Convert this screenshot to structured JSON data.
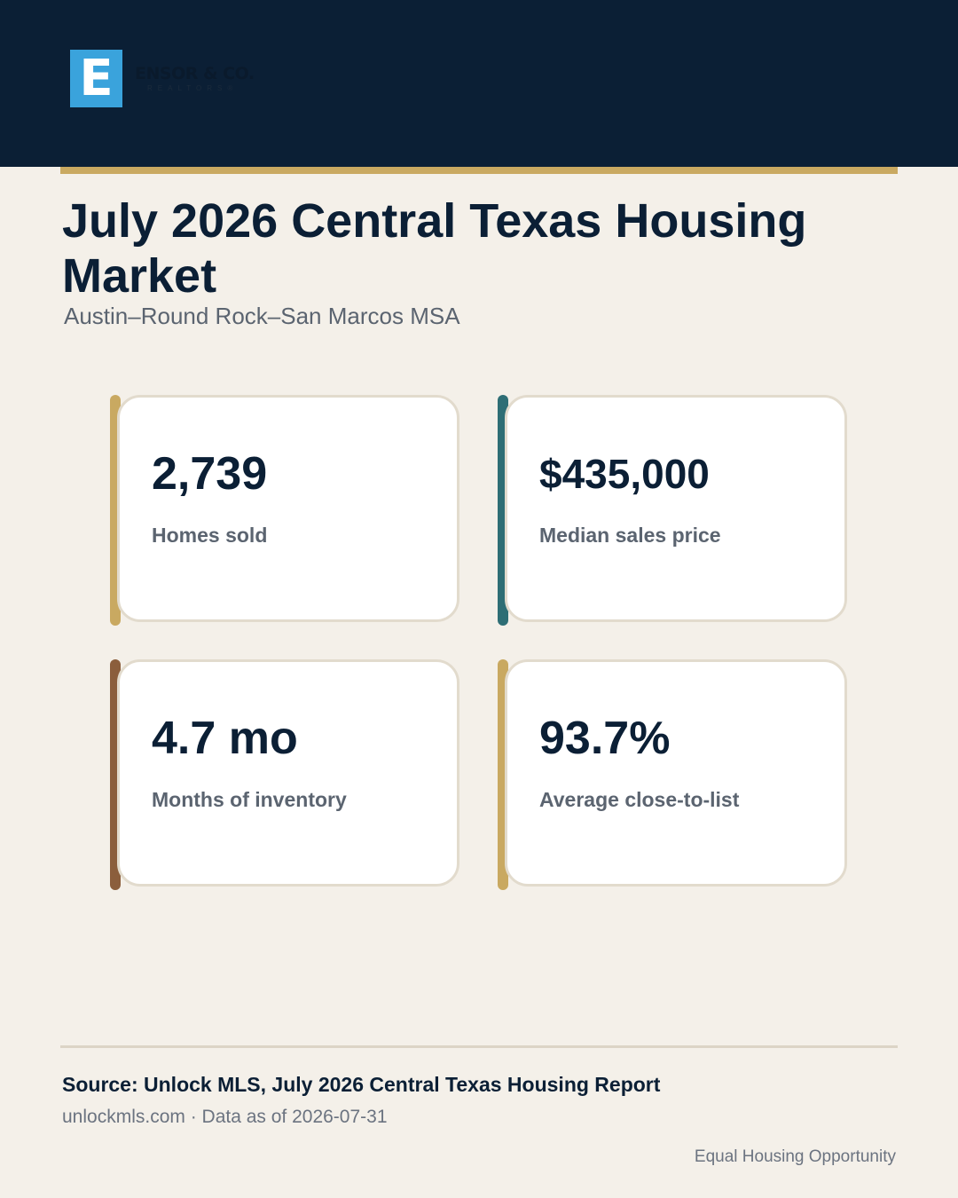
{
  "brand": {
    "mark_letter": "E",
    "name": "ENSOR & CO.",
    "tagline": "REALTORS®"
  },
  "title": "July 2026 Central Texas Housing Market",
  "subtitle": "Austin–Round Rock–San Marcos MSA",
  "stats": [
    {
      "value": "2,739",
      "label": "Homes sold",
      "accent_color": "#c9a961"
    },
    {
      "value": "$435,000",
      "label": "Median sales price",
      "accent_color": "#2e6e75"
    },
    {
      "value": "4.7 mo",
      "label": "Months of inventory",
      "accent_color": "#8b5e3c"
    },
    {
      "value": "93.7%",
      "label": "Average close-to-list",
      "accent_color": "#c9a961"
    }
  ],
  "footer": {
    "source": "Source: Unlock MLS, July 2026 Central Texas Housing Report",
    "meta": "unlockmls.com · Data as of 2026-07-31",
    "disclaimer": "Equal Housing Opportunity"
  },
  "colors": {
    "header_bg": "#0b1f35",
    "page_bg": "#f4f0e9",
    "gold": "#c9a961",
    "logo_blue": "#3aa3dc"
  }
}
